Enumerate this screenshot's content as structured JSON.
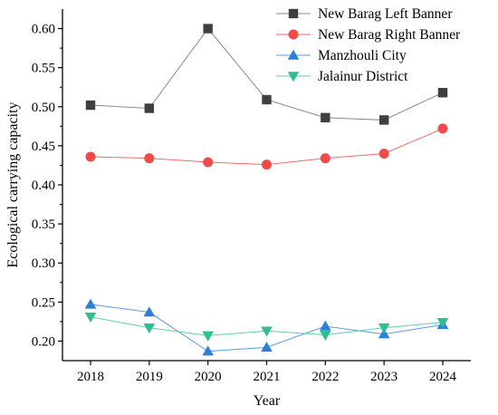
{
  "chart_data": {
    "type": "line",
    "xlabel": "Year",
    "ylabel": "Ecological carrying capacity",
    "categories": [
      "2018",
      "2019",
      "2020",
      "2021",
      "2022",
      "2023",
      "2024"
    ],
    "ylim": [
      0.175,
      0.625
    ],
    "yticks": [
      0.2,
      0.25,
      0.3,
      0.35,
      0.4,
      0.45,
      0.5,
      0.55,
      0.6
    ],
    "ytick_labels": [
      "0.20",
      "0.25",
      "0.30",
      "0.35",
      "0.40",
      "0.45",
      "0.50",
      "0.55",
      "0.60"
    ],
    "grid": false,
    "legend_position": "top-right",
    "series": [
      {
        "name": "New Barag Left Banner",
        "marker": "square",
        "color": "#3f3f3f",
        "line_color": "#8a8a8a",
        "values": [
          0.502,
          0.498,
          0.6,
          0.509,
          0.486,
          0.483,
          0.518
        ]
      },
      {
        "name": "New Barag Right Banner",
        "marker": "circle",
        "color": "#f04b4b",
        "line_color": "#f06a6a",
        "values": [
          0.436,
          0.434,
          0.429,
          0.426,
          0.434,
          0.44,
          0.472
        ]
      },
      {
        "name": "Manzhouli City",
        "marker": "triangle-up",
        "color": "#2e7fd6",
        "line_color": "#5b9be0",
        "values": [
          0.247,
          0.237,
          0.187,
          0.192,
          0.219,
          0.209,
          0.221
        ]
      },
      {
        "name": "Jalainur District",
        "marker": "triangle-down",
        "color": "#2dbf92",
        "line_color": "#5fcfa8",
        "values": [
          0.231,
          0.217,
          0.207,
          0.213,
          0.208,
          0.217,
          0.224
        ]
      }
    ]
  }
}
